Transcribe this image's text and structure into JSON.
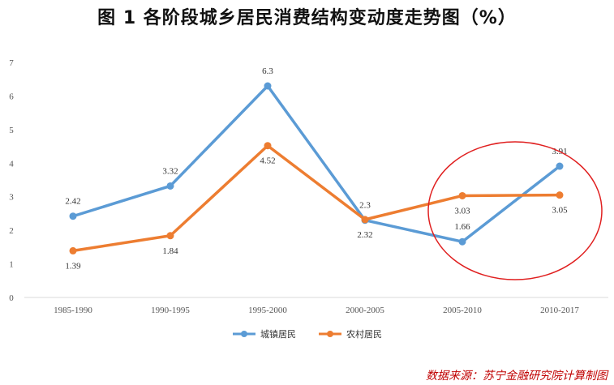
{
  "title": "图 1    各阶段城乡居民消费结构变动度走势图（%）",
  "source": "数据来源：苏宁金融研究院计算制图",
  "colors": {
    "urban": "#5B9BD5",
    "rural": "#ED7D31",
    "highlight": "#E02020",
    "grid": "#D9D9D9"
  },
  "chart_data": {
    "type": "line",
    "title": "图 1    各阶段城乡居民消费结构变动度走势图（%）",
    "categories": [
      "1985-1990",
      "1990-1995",
      "1995-2000",
      "2000-2005",
      "2005-2010",
      "2010-2017"
    ],
    "series": [
      {
        "name": "城镇居民",
        "values": [
          2.42,
          3.32,
          6.3,
          2.3,
          1.66,
          3.91
        ],
        "labels": [
          "2.42",
          "3.32",
          "6.3",
          "2.3",
          "1.66",
          "3.91"
        ],
        "label_pos": [
          "above",
          "above",
          "above",
          "above",
          "above",
          "above"
        ]
      },
      {
        "name": "农村居民",
        "values": [
          1.39,
          1.84,
          4.52,
          2.32,
          3.03,
          3.05
        ],
        "labels": [
          "1.39",
          "1.84",
          "4.52",
          "2.32",
          "3.03",
          "3.05"
        ],
        "label_pos": [
          "below",
          "below",
          "below",
          "below",
          "below",
          "below"
        ]
      }
    ],
    "ylim": [
      0,
      7
    ],
    "yticks": [
      "0",
      "1",
      "2",
      "3",
      "4",
      "5",
      "6",
      "7"
    ],
    "xlabel": "",
    "ylabel": "",
    "grid": false,
    "legend": "bottom-center",
    "annotation": "red circle around 2005-2010 and 2010-2017"
  }
}
